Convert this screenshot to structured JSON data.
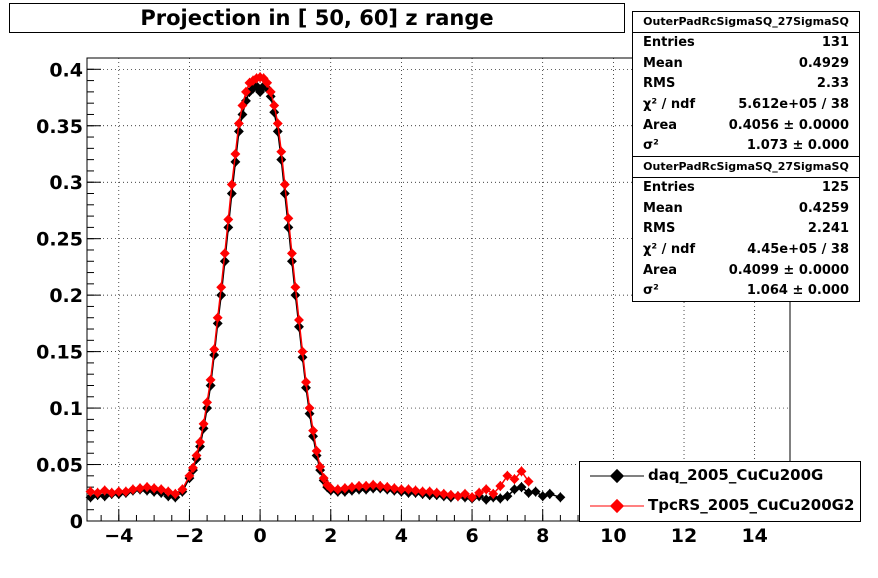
{
  "title": "Projection in [  50,  60] z range",
  "stats": [
    {
      "name": "OuterPadRcSigmaSQ_27SigmaSQ",
      "rows": [
        [
          "Entries",
          "131"
        ],
        [
          "Mean",
          "0.4929"
        ],
        [
          "RMS",
          "2.33"
        ],
        [
          "χ² / ndf",
          "5.612e+05 / 38"
        ],
        [
          "Area",
          "0.4056 ± 0.0000"
        ],
        [
          "σ²",
          "1.073 ± 0.000"
        ]
      ]
    },
    {
      "name": "OuterPadRcSigmaSQ_27SigmaSQ",
      "rows": [
        [
          "Entries",
          "125"
        ],
        [
          "Mean",
          "0.4259"
        ],
        [
          "RMS",
          "2.241"
        ],
        [
          "χ² / ndf",
          "4.45e+05 / 38"
        ],
        [
          "Area",
          "0.4099 ± 0.0000"
        ],
        [
          "σ²",
          "1.064 ± 0.000"
        ]
      ]
    }
  ],
  "legend": [
    "daq_2005_CuCu200G",
    "TpcRS_2005_CuCu200G2"
  ],
  "colors": {
    "series1": "#000000",
    "series2": "#ff0000"
  },
  "chart_data": {
    "type": "scatter",
    "title": "Projection in [  50,  60] z range",
    "xlabel": "",
    "ylabel": "",
    "xlim": [
      -4.9,
      15.0
    ],
    "ylim": [
      0,
      0.41
    ],
    "x_ticks": [
      -4,
      -2,
      0,
      2,
      4,
      6,
      8,
      10,
      12,
      14
    ],
    "y_ticks": [
      0,
      0.05,
      0.1,
      0.15,
      0.2,
      0.25,
      0.3,
      0.35,
      0.4
    ],
    "grid": true,
    "legend_position": "bottom-right",
    "series": [
      {
        "name": "daq_2005_CuCu200G",
        "x": [
          -4.8,
          -4.6,
          -4.4,
          -4.2,
          -4.0,
          -3.8,
          -3.6,
          -3.4,
          -3.2,
          -3.0,
          -2.8,
          -2.6,
          -2.4,
          -2.2,
          -2.0,
          -1.9,
          -1.8,
          -1.7,
          -1.6,
          -1.5,
          -1.4,
          -1.3,
          -1.2,
          -1.1,
          -1.0,
          -0.9,
          -0.8,
          -0.7,
          -0.6,
          -0.5,
          -0.4,
          -0.3,
          -0.2,
          -0.1,
          0.0,
          0.1,
          0.2,
          0.3,
          0.4,
          0.5,
          0.6,
          0.7,
          0.8,
          0.9,
          1.0,
          1.1,
          1.2,
          1.3,
          1.4,
          1.5,
          1.6,
          1.7,
          1.8,
          1.9,
          2.0,
          2.2,
          2.4,
          2.6,
          2.8,
          3.0,
          3.2,
          3.4,
          3.6,
          3.8,
          4.0,
          4.2,
          4.4,
          4.6,
          4.8,
          5.0,
          5.2,
          5.4,
          5.6,
          5.8,
          6.0,
          6.2,
          6.4,
          6.6,
          6.8,
          7.0,
          7.2,
          7.4,
          7.6,
          7.8,
          8.0,
          8.2,
          8.5
        ],
        "y": [
          0.021,
          0.023,
          0.022,
          0.024,
          0.024,
          0.025,
          0.027,
          0.028,
          0.027,
          0.026,
          0.025,
          0.022,
          0.021,
          0.026,
          0.038,
          0.045,
          0.055,
          0.066,
          0.082,
          0.1,
          0.12,
          0.147,
          0.175,
          0.2,
          0.23,
          0.26,
          0.29,
          0.318,
          0.345,
          0.36,
          0.372,
          0.38,
          0.383,
          0.385,
          0.38,
          0.385,
          0.383,
          0.376,
          0.362,
          0.345,
          0.32,
          0.29,
          0.26,
          0.23,
          0.2,
          0.172,
          0.145,
          0.118,
          0.095,
          0.075,
          0.058,
          0.045,
          0.036,
          0.03,
          0.027,
          0.026,
          0.026,
          0.027,
          0.028,
          0.028,
          0.029,
          0.029,
          0.028,
          0.027,
          0.026,
          0.025,
          0.025,
          0.024,
          0.023,
          0.023,
          0.022,
          0.021,
          0.022,
          0.021,
          0.02,
          0.022,
          0.019,
          0.021,
          0.02,
          0.022,
          0.028,
          0.03,
          0.025,
          0.026,
          0.022,
          0.024,
          0.021
        ]
      },
      {
        "name": "TpcRS_2005_CuCu200G2",
        "x": [
          -4.8,
          -4.6,
          -4.4,
          -4.2,
          -4.0,
          -3.8,
          -3.6,
          -3.4,
          -3.2,
          -3.0,
          -2.8,
          -2.6,
          -2.4,
          -2.2,
          -2.0,
          -1.9,
          -1.8,
          -1.7,
          -1.6,
          -1.5,
          -1.4,
          -1.3,
          -1.2,
          -1.1,
          -1.0,
          -0.9,
          -0.8,
          -0.7,
          -0.6,
          -0.5,
          -0.4,
          -0.3,
          -0.2,
          -0.1,
          0.0,
          0.1,
          0.2,
          0.3,
          0.4,
          0.5,
          0.6,
          0.7,
          0.8,
          0.9,
          1.0,
          1.1,
          1.2,
          1.3,
          1.4,
          1.5,
          1.6,
          1.7,
          1.8,
          1.9,
          2.0,
          2.2,
          2.4,
          2.6,
          2.8,
          3.0,
          3.2,
          3.4,
          3.6,
          3.8,
          4.0,
          4.2,
          4.4,
          4.6,
          4.8,
          5.0,
          5.2,
          5.4,
          5.6,
          5.8,
          6.0,
          6.2,
          6.4,
          6.6,
          6.8,
          7.0,
          7.2,
          7.4,
          7.6
        ],
        "y": [
          0.026,
          0.025,
          0.027,
          0.025,
          0.026,
          0.026,
          0.028,
          0.029,
          0.03,
          0.029,
          0.028,
          0.026,
          0.024,
          0.028,
          0.04,
          0.047,
          0.058,
          0.07,
          0.086,
          0.105,
          0.125,
          0.152,
          0.18,
          0.207,
          0.237,
          0.267,
          0.298,
          0.325,
          0.352,
          0.368,
          0.38,
          0.388,
          0.39,
          0.392,
          0.393,
          0.392,
          0.388,
          0.38,
          0.368,
          0.352,
          0.327,
          0.298,
          0.268,
          0.237,
          0.207,
          0.178,
          0.15,
          0.123,
          0.1,
          0.08,
          0.062,
          0.048,
          0.038,
          0.032,
          0.029,
          0.028,
          0.029,
          0.03,
          0.031,
          0.031,
          0.032,
          0.031,
          0.03,
          0.029,
          0.028,
          0.028,
          0.027,
          0.026,
          0.026,
          0.025,
          0.024,
          0.023,
          0.022,
          0.024,
          0.021,
          0.025,
          0.028,
          0.024,
          0.031,
          0.04,
          0.037,
          0.044,
          0.035
        ]
      }
    ]
  }
}
